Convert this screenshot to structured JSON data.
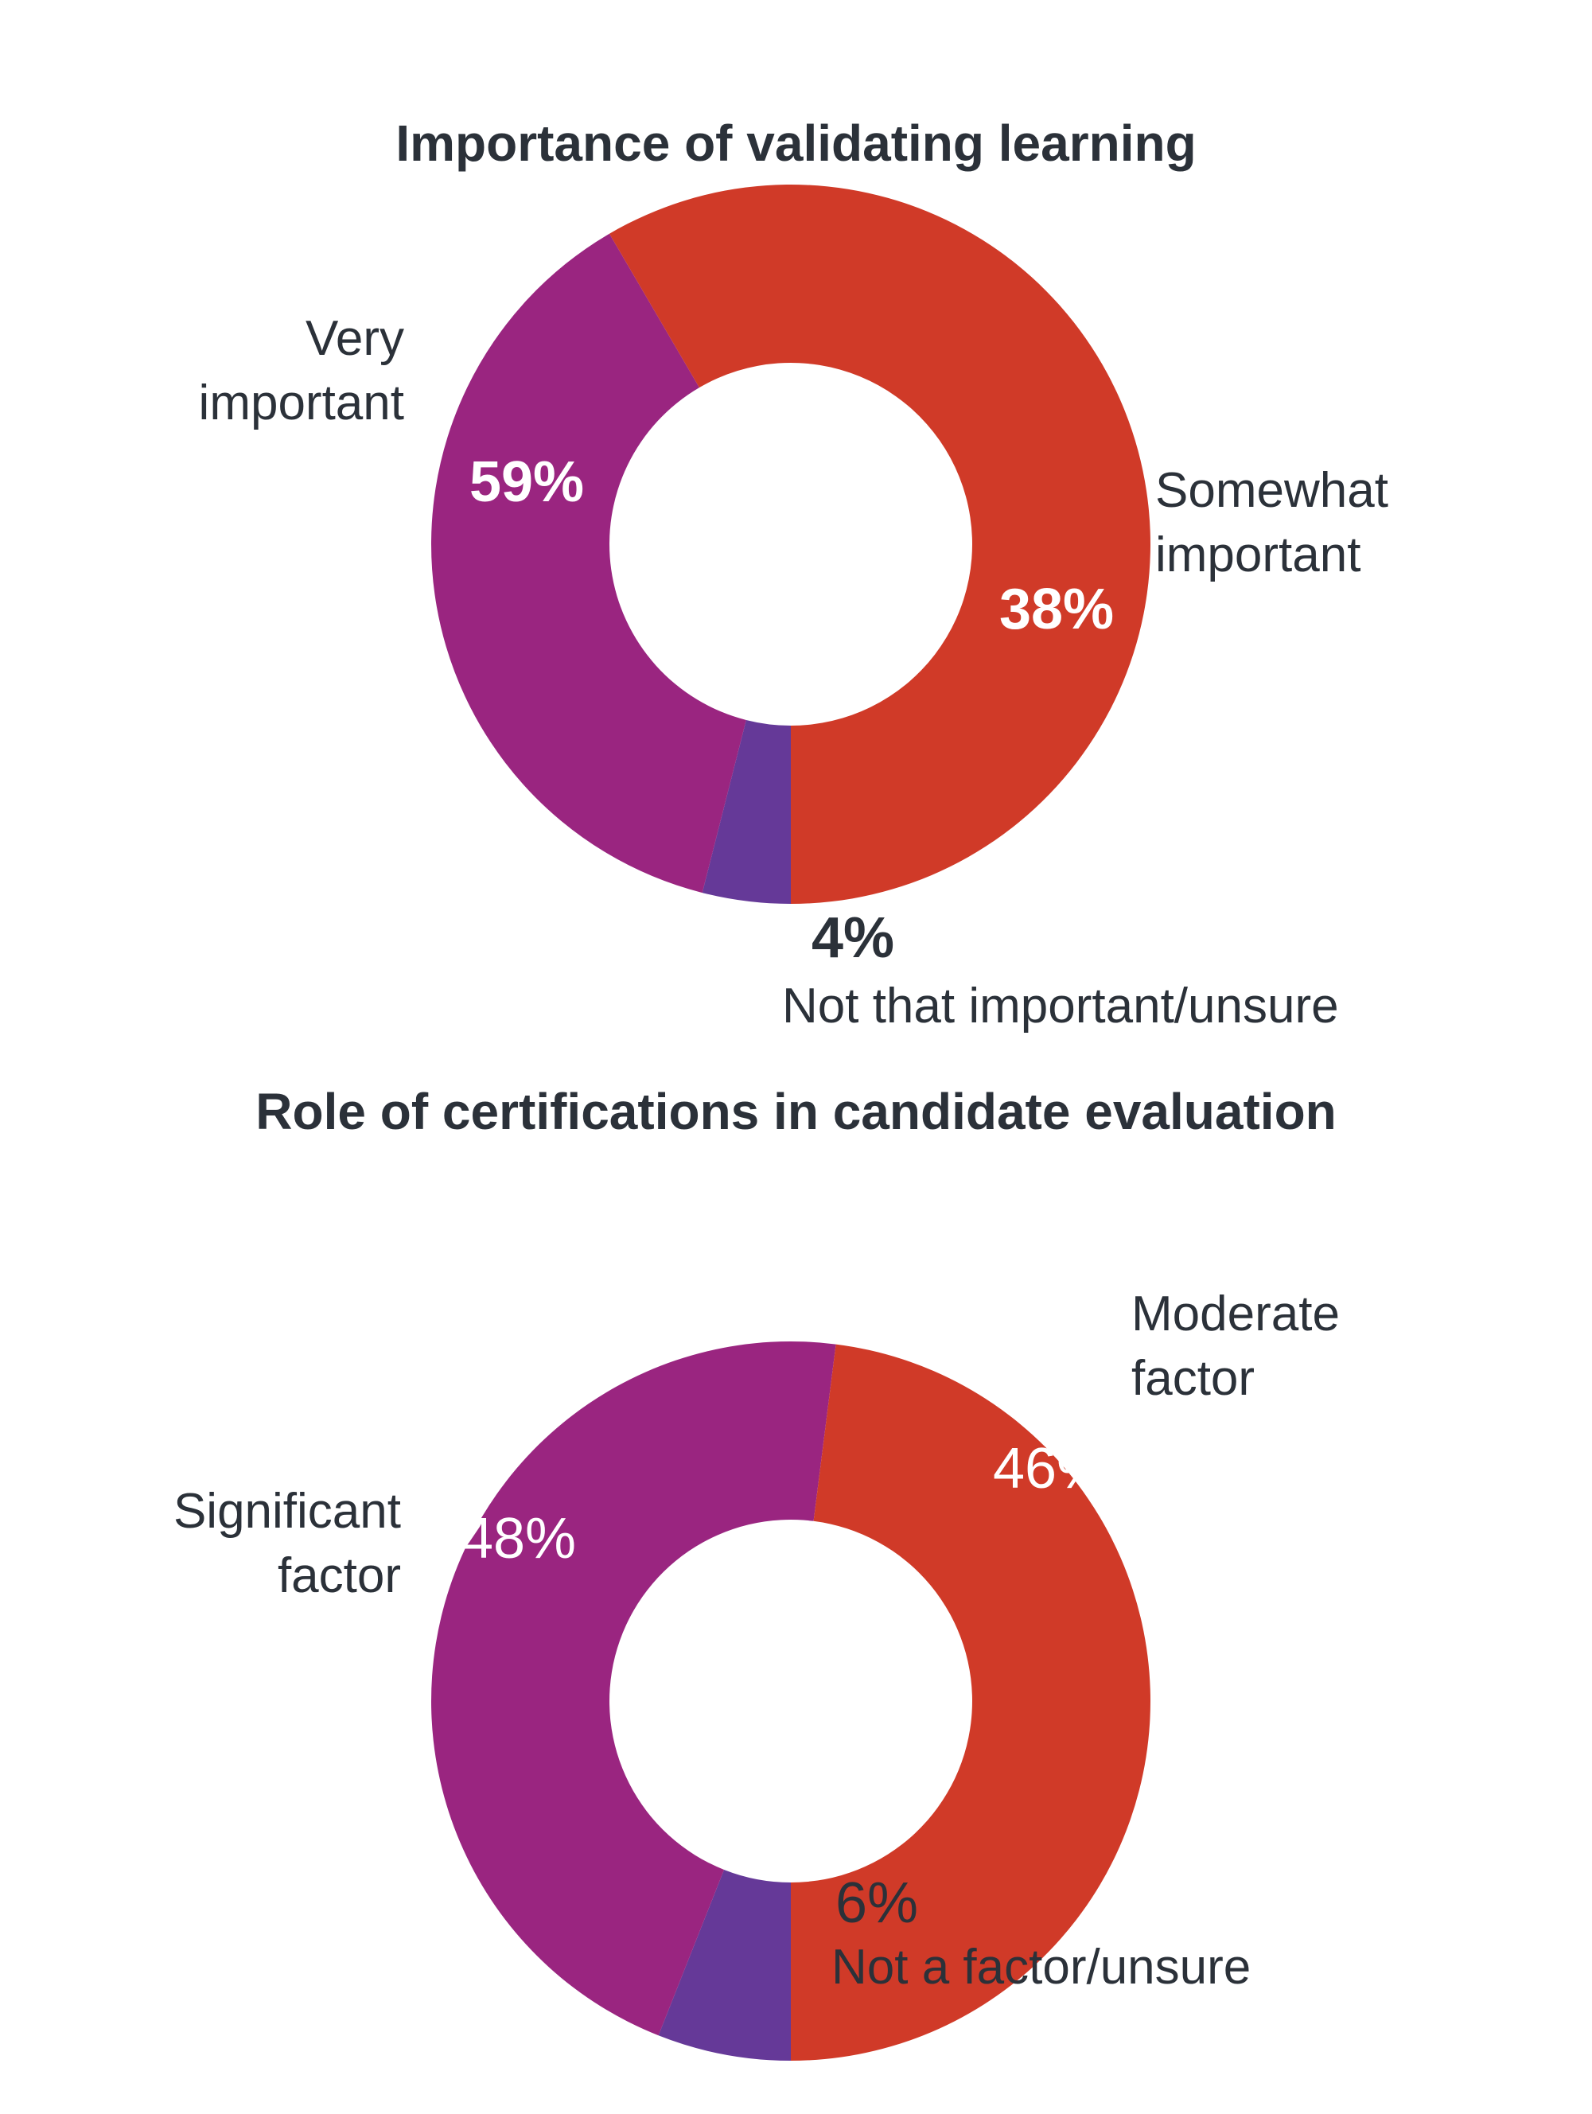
{
  "colors": {
    "red": "#d03a28",
    "magenta": "#9a2580",
    "violet": "#653998",
    "inside_text": "#ffffff",
    "text": "#2b3139"
  },
  "chart_data": [
    {
      "type": "pie",
      "title": "Importance of validating learning",
      "donut": true,
      "slices": [
        {
          "label": "Very important",
          "value": 59,
          "display": "59%",
          "color": "#d03a28"
        },
        {
          "label": "Somewhat important",
          "value": 38,
          "display": "38%",
          "color": "#9a2580"
        },
        {
          "label": "Not that important/unsure",
          "value": 4,
          "display": "4%",
          "color": "#653998"
        }
      ],
      "percent_labels_bold": true
    },
    {
      "type": "pie",
      "title": "Role of certifications in candidate evaluation",
      "donut": true,
      "slices": [
        {
          "label": "Significant factor",
          "value": 48,
          "display": "48%",
          "color": "#d03a28"
        },
        {
          "label": "Moderate factor",
          "value": 46,
          "display": "46%",
          "color": "#9a2580"
        },
        {
          "label": "Not a factor/unsure",
          "value": 6,
          "display": "6%",
          "color": "#653998"
        }
      ],
      "percent_labels_bold": false
    }
  ],
  "labels": {
    "a": {
      "very_line1": "Very",
      "very_line2": "important",
      "somewhat_line1": "Somewhat",
      "somewhat_line2": "important",
      "not_line1": "Not that important/unsure"
    },
    "b": {
      "significant_line1": "Significant",
      "significant_line2": "factor",
      "moderate_line1": "Moderate",
      "moderate_line2": "factor",
      "not_line1": "Not a factor/unsure"
    }
  }
}
